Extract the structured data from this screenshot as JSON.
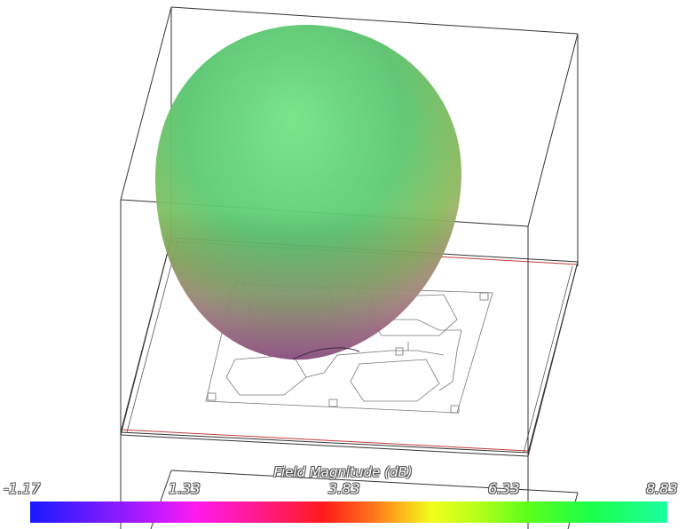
{
  "legend": {
    "title": "Field Magnitude (dB)",
    "ticks": [
      "-1.17",
      "1.33",
      "3.83",
      "6.33",
      "8.83"
    ],
    "range": [
      -1.17,
      8.83
    ],
    "colormap": [
      "#1a1aff",
      "#c21aff",
      "#ff1aef",
      "#ff1a1a",
      "#ffb31a",
      "#f0ff1a",
      "#5cff1a",
      "#1affa0"
    ]
  },
  "scene": {
    "pattern_top_color": "#6fe07c",
    "pattern_bottom_color": "#c06ec8",
    "substrate_edge_color": "#c43a3a",
    "box_edge_color": "#333333"
  }
}
